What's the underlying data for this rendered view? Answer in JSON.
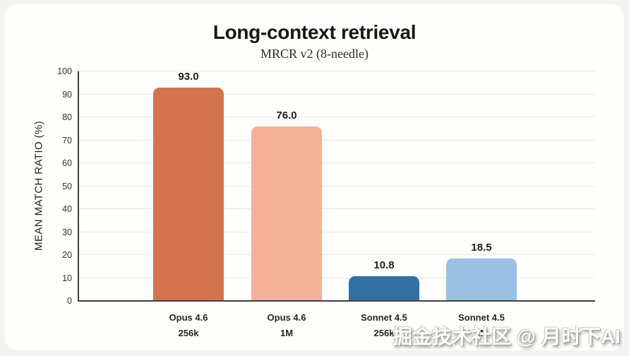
{
  "header": {
    "title": "Long-context retrieval",
    "subtitle": "MRCR v2 (8-needle)"
  },
  "chart_data": {
    "type": "bar",
    "title": "Long-context retrieval",
    "subtitle": "MRCR v2 (8-needle)",
    "ylabel": "MEAN MATCH RATIO (%)",
    "xlabel": "",
    "ylim": [
      0,
      100
    ],
    "yticks": [
      0,
      10,
      20,
      30,
      40,
      50,
      60,
      70,
      80,
      90,
      100
    ],
    "grid": true,
    "legend_position": "none",
    "categories": [
      "Opus 4.6\n256k",
      "Opus 4.6\n1M",
      "Sonnet 4.5\n256k",
      "Sonnet 4.5\n1M"
    ],
    "values": [
      93.0,
      76.0,
      10.8,
      18.5
    ],
    "value_labels": [
      "93.0",
      "76.0",
      "10.8",
      "18.5"
    ],
    "bar_colors": [
      "#d47352",
      "#f3b098",
      "#33709f",
      "#9ac0e4"
    ]
  },
  "colors": {
    "page_background": "#f4f3ef",
    "card_background": "#fffefc",
    "axis": "#3f3f3f",
    "gridline": "#eceae6",
    "text": "#1d1d1d"
  },
  "watermark": {
    "text": "掘金技术社区 @ 月时下AI"
  }
}
